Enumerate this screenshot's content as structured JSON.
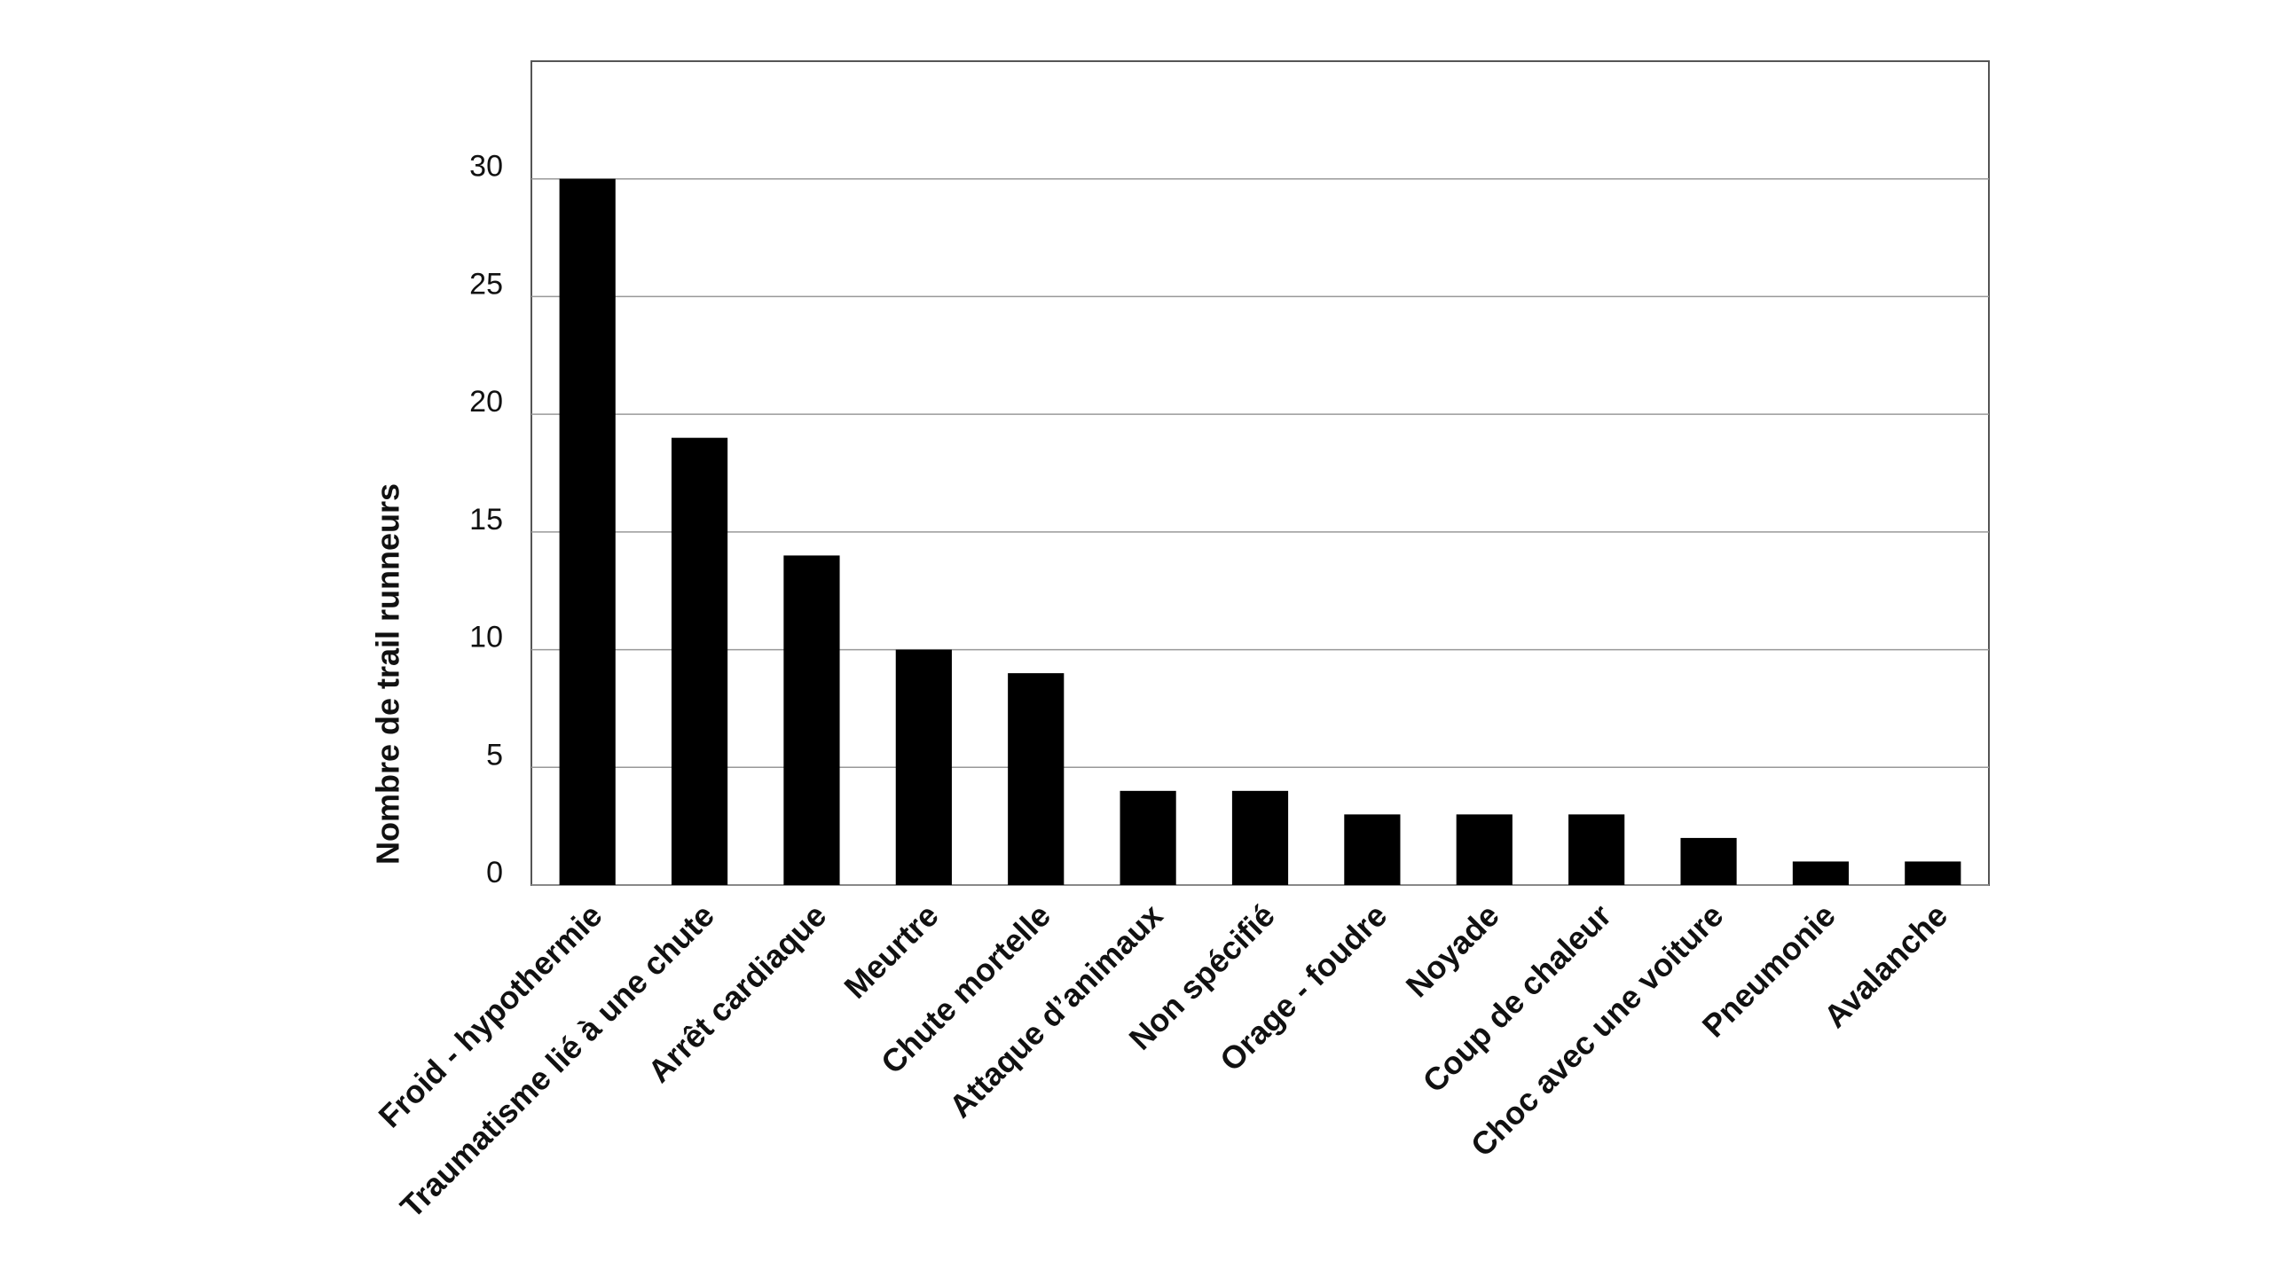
{
  "chart_data": {
    "type": "bar",
    "y_label": "Nombre de trail runneurs",
    "categories": [
      "Froid - hypothermie",
      "Traumatisme lié à une chute",
      "Arrêt cardiaque",
      "Meurtre",
      "Chute mortelle",
      "Attaque d’animaux",
      "Non spécifié",
      "Orage - foudre",
      "Noyade",
      "Coup de chaleur",
      "Choc avec une voiture",
      "Pneumonie",
      "Avalanche"
    ],
    "values": [
      30,
      19,
      14,
      10,
      9,
      4,
      4,
      3,
      3,
      3,
      2,
      1,
      1
    ],
    "color": "#000000",
    "ylim": [
      0,
      35
    ],
    "yticks": [
      0,
      5,
      10,
      15,
      20,
      25,
      30
    ],
    "grid": true
  }
}
